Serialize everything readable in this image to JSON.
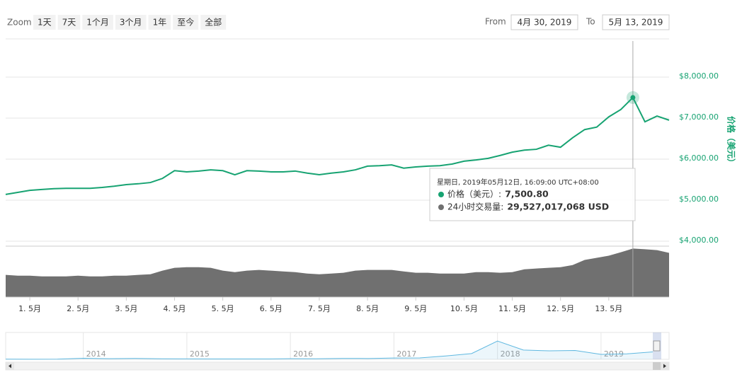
{
  "chart_data": {
    "type": "stock",
    "range_selector": {
      "label": "Zoom",
      "buttons": [
        "1天",
        "7天",
        "1个月",
        "3个月",
        "1年",
        "至今",
        "全部"
      ]
    },
    "date_range": {
      "from_label": "From",
      "from": "4月 30, 2019",
      "to_label": "To",
      "to": "5月 13, 2019"
    },
    "categories": [
      null,
      null,
      "1. 5月",
      null,
      null,
      null,
      "2. 5月",
      null,
      null,
      null,
      "3. 5月",
      null,
      null,
      null,
      "4. 5月",
      null,
      null,
      null,
      "5. 5月",
      null,
      null,
      null,
      "6. 5月",
      null,
      null,
      null,
      "7. 5月",
      null,
      null,
      null,
      "8. 5月",
      null,
      null,
      null,
      "9. 5月",
      null,
      null,
      null,
      "10. 5月",
      null,
      null,
      null,
      "11. 5月",
      null,
      null,
      null,
      "12. 5月",
      null,
      null,
      null,
      "13. 5月",
      null,
      null,
      null,
      null,
      null
    ],
    "series": [
      {
        "name": "价格（美元）",
        "color": "#17a372",
        "values": [
          5140,
          5190,
          5240,
          5260,
          5280,
          5290,
          5290,
          5290,
          5310,
          5340,
          5380,
          5400,
          5430,
          5530,
          5720,
          5690,
          5710,
          5740,
          5720,
          5620,
          5720,
          5710,
          5690,
          5690,
          5710,
          5660,
          5620,
          5660,
          5690,
          5740,
          5830,
          5840,
          5860,
          5780,
          5810,
          5830,
          5840,
          5880,
          5950,
          5980,
          6020,
          6090,
          6170,
          6220,
          6240,
          6340,
          6290,
          6520,
          6720,
          6780,
          7030,
          7210,
          7500.8,
          6910,
          7050,
          6950
        ]
      },
      {
        "name": "24小时交易量",
        "color": "#707070",
        "axis": "y2",
        "values": [
          13500000000.0,
          13000000000.0,
          13000000000.0,
          12600000000.0,
          12600000000.0,
          12600000000.0,
          13000000000.0,
          12600000000.0,
          12600000000.0,
          13000000000.0,
          13000000000.0,
          13500000000.0,
          13900000000.0,
          16100000000.0,
          17800000000.0,
          18200000000.0,
          18200000000.0,
          17800000000.0,
          16100000000.0,
          15200000000.0,
          16100000000.0,
          16500000000.0,
          16100000000.0,
          15600000000.0,
          15200000000.0,
          14300000000.0,
          13900000000.0,
          14300000000.0,
          14800000000.0,
          16100000000.0,
          16500000000.0,
          16500000000.0,
          16500000000.0,
          15600000000.0,
          14800000000.0,
          14800000000.0,
          14300000000.0,
          14300000000.0,
          14300000000.0,
          15200000000.0,
          15200000000.0,
          14800000000.0,
          15200000000.0,
          16900000000.0,
          17400000000.0,
          17800000000.0,
          18200000000.0,
          19500000000.0,
          22600000000.0,
          23900000000.0,
          25200000000.0,
          27300000000.0,
          29527017068,
          29100000000.0,
          28600000000.0,
          26900000000.0
        ]
      }
    ],
    "ylim": [
      3880,
      8930
    ],
    "yticks": [
      {
        "value": 4000,
        "label": "$4,000.00"
      },
      {
        "value": 5000,
        "label": "$5,000.00"
      },
      {
        "value": 6000,
        "label": "$6,000.00"
      },
      {
        "value": 7000,
        "label": "$7,000.00"
      },
      {
        "value": 8000,
        "label": "$8,000.00"
      }
    ],
    "y2lim": [
      0,
      31000000000
    ],
    "y_axis_title": "价格（美元）",
    "grid": true,
    "tooltip": {
      "header": "星期日, 2019年05月12日, 16:09:00 UTC+08:00",
      "separator": ":",
      "rows": [
        {
          "value": 7500.8,
          "label": "7,500.80"
        },
        {
          "value": 29527017068,
          "label": "29,527,017,068 USD"
        }
      ]
    },
    "navigator": {
      "color": "#5fb8e0",
      "categories": [
        null,
        null,
        null,
        "2014",
        null,
        null,
        null,
        "2015",
        null,
        null,
        null,
        "2016",
        null,
        null,
        null,
        "2017",
        null,
        null,
        null,
        "2018",
        null,
        null,
        null,
        "2019",
        null,
        null
      ],
      "values": [
        100,
        90,
        130,
        800,
        450,
        630,
        390,
        315,
        245,
        260,
        240,
        430,
        415,
        670,
        610,
        1000,
        1070,
        2500,
        4300,
        13600,
        6900,
        6300,
        6600,
        3700,
        4100,
        5500
      ],
      "ylim": [
        0,
        20000
      ]
    }
  }
}
